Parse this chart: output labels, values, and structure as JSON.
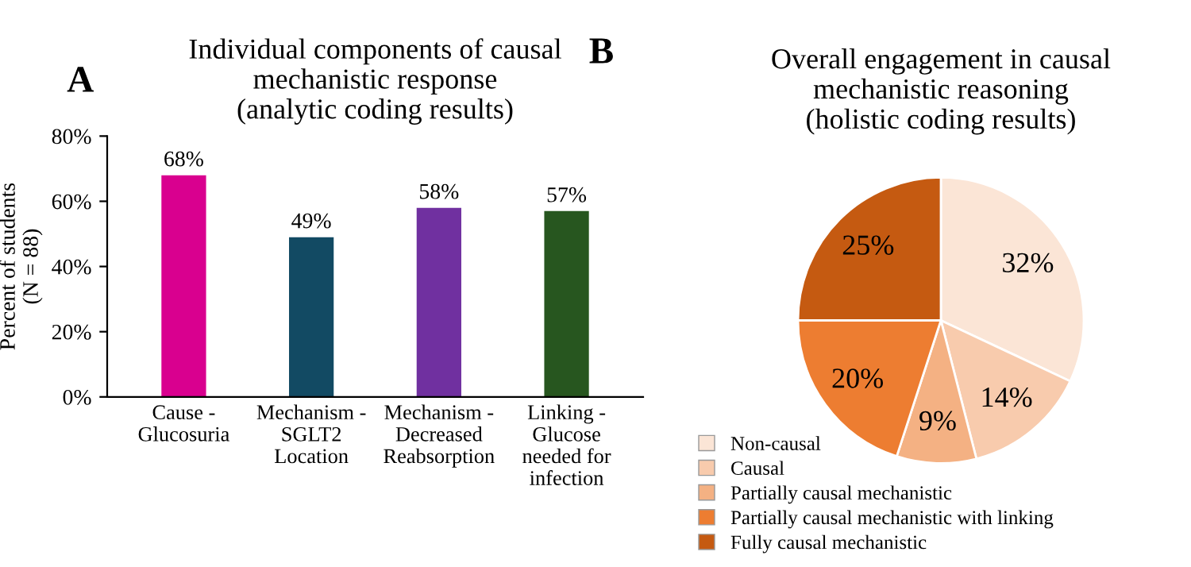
{
  "chart_data": [
    {
      "type": "bar",
      "title": "Individual components of causal\nmechanistic response\n(analytic coding results)",
      "ylabel": "Percent of students\n(N = 88)",
      "annotations": [
        "A"
      ],
      "categories": [
        "Cause -\nGlucosuria",
        "Mechanism -\nSGLT2\nLocation",
        "Mechanism -\nDecreased\nReabsorption",
        "Linking -\nGlucose\nneeded for\ninfection"
      ],
      "values": [
        68,
        49,
        58,
        57
      ],
      "colors": [
        "#d9008f",
        "#124a63",
        "#7030a0",
        "#27561f"
      ],
      "value_labels": [
        "68%",
        "49%",
        "58%",
        "57%"
      ],
      "ylim": [
        0,
        80
      ],
      "yticks": [
        {
          "value": 0,
          "label": "0%"
        },
        {
          "value": 20,
          "label": "20%"
        },
        {
          "value": 40,
          "label": "40%"
        },
        {
          "value": 60,
          "label": "60%"
        },
        {
          "value": 80,
          "label": "80%"
        }
      ],
      "grid": false
    },
    {
      "type": "pie",
      "title": "Overall engagement in causal\nmechanistic reasoning\n(holistic coding results)",
      "annotations": [
        "B"
      ],
      "categories": [
        "Non-causal",
        "Causal",
        "Partially causal mechanistic",
        "Partially causal mechanistic with linking",
        "Fully causal mechanistic"
      ],
      "values": [
        32,
        14,
        9,
        20,
        25
      ],
      "colors": [
        "#fbe5d6",
        "#f8cbad",
        "#f4b183",
        "#ed7d31",
        "#c55a11"
      ],
      "value_labels": [
        "32%",
        "14%",
        "9%",
        "20%",
        "25%"
      ],
      "legend": "bottom left"
    }
  ]
}
